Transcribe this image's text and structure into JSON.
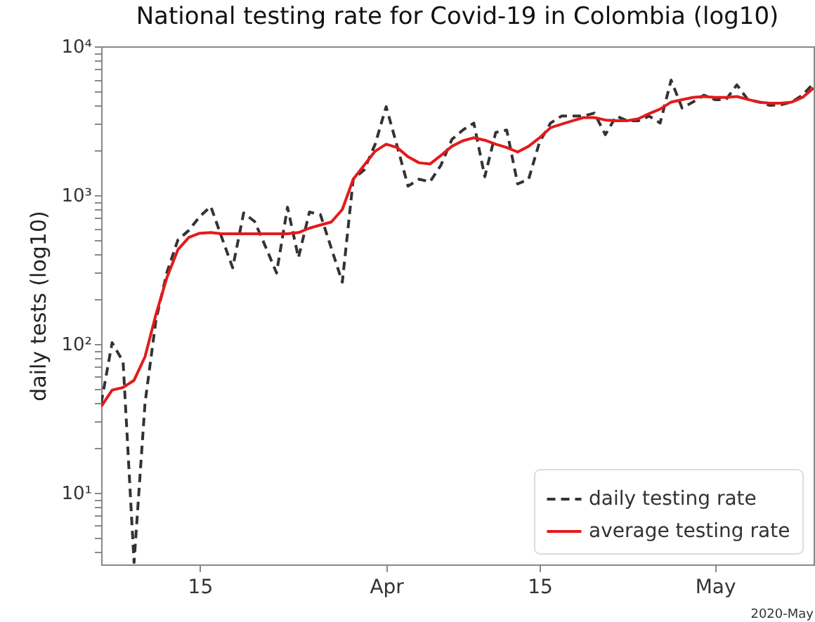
{
  "chart_data": {
    "type": "line",
    "title": "National testing rate for Covid-19 in Colombia (log10)",
    "ylabel": "daily tests (log10)",
    "annotations": [
      "2020-May"
    ],
    "x": [
      "2020-03-06",
      "2020-03-07",
      "2020-03-08",
      "2020-03-09",
      "2020-03-10",
      "2020-03-11",
      "2020-03-12",
      "2020-03-13",
      "2020-03-14",
      "2020-03-15",
      "2020-03-16",
      "2020-03-17",
      "2020-03-18",
      "2020-03-19",
      "2020-03-20",
      "2020-03-21",
      "2020-03-22",
      "2020-03-23",
      "2020-03-24",
      "2020-03-25",
      "2020-03-26",
      "2020-03-27",
      "2020-03-28",
      "2020-03-29",
      "2020-03-30",
      "2020-03-31",
      "2020-04-01",
      "2020-04-02",
      "2020-04-03",
      "2020-04-04",
      "2020-04-05",
      "2020-04-06",
      "2020-04-07",
      "2020-04-08",
      "2020-04-09",
      "2020-04-10",
      "2020-04-11",
      "2020-04-12",
      "2020-04-13",
      "2020-04-14",
      "2020-04-15",
      "2020-04-16",
      "2020-04-17",
      "2020-04-18",
      "2020-04-19",
      "2020-04-20",
      "2020-04-21",
      "2020-04-22",
      "2020-04-23",
      "2020-04-24",
      "2020-04-25",
      "2020-04-26",
      "2020-04-27",
      "2020-04-28",
      "2020-04-29",
      "2020-04-30",
      "2020-05-01",
      "2020-05-02",
      "2020-05-03",
      "2020-05-04",
      "2020-05-05",
      "2020-05-06",
      "2020-05-07",
      "2020-05-08",
      "2020-05-09",
      "2020-05-10"
    ],
    "series": [
      {
        "name": "daily testing rate",
        "color": "#333333",
        "line_style": "dashed",
        "values": [
          40,
          102,
          76,
          3.4,
          40,
          145,
          303,
          500,
          580,
          720,
          840,
          520,
          325,
          760,
          665,
          450,
          300,
          830,
          380,
          770,
          740,
          440,
          260,
          1280,
          1480,
          2200,
          3930,
          2140,
          1150,
          1280,
          1230,
          1590,
          2370,
          2740,
          3050,
          1330,
          2640,
          2740,
          1190,
          1280,
          2280,
          3050,
          3400,
          3400,
          3400,
          3560,
          2550,
          3400,
          3160,
          3160,
          3400,
          3050,
          5930,
          3850,
          4230,
          4700,
          4380,
          4380,
          5510,
          4380,
          4230,
          4010,
          4050,
          4230,
          4700,
          5650
        ]
      },
      {
        "name": "average testing rate",
        "color": "#e31a1c",
        "line_style": "solid",
        "values": [
          38,
          49,
          51,
          57,
          82,
          158,
          280,
          430,
          520,
          555,
          560,
          550,
          550,
          550,
          550,
          550,
          550,
          550,
          560,
          600,
          630,
          660,
          800,
          1280,
          1590,
          1975,
          2200,
          2090,
          1810,
          1650,
          1620,
          1850,
          2130,
          2320,
          2430,
          2340,
          2200,
          2090,
          1950,
          2130,
          2430,
          2840,
          3000,
          3160,
          3320,
          3320,
          3200,
          3160,
          3160,
          3260,
          3530,
          3790,
          4220,
          4380,
          4540,
          4600,
          4540,
          4540,
          4600,
          4400,
          4220,
          4150,
          4150,
          4220,
          4540,
          5250
        ]
      }
    ],
    "log": true,
    "xlim": [
      "2020-03-06",
      "2020-05-10"
    ],
    "xticks": [
      {
        "value": "2020-03-15",
        "label": "15"
      },
      {
        "value": "2020-04-01",
        "label": "Apr"
      },
      {
        "value": "2020-04-15",
        "label": "15"
      },
      {
        "value": "2020-05-01",
        "label": "May"
      }
    ],
    "ylim": [
      3.3,
      10000
    ],
    "yticks": [
      {
        "value": 4,
        "label": null
      },
      {
        "value": 5,
        "label": null
      },
      {
        "value": 6,
        "label": null
      },
      {
        "value": 7,
        "label": null
      },
      {
        "value": 8,
        "label": null
      },
      {
        "value": 9,
        "label": null
      },
      {
        "value": 10,
        "label": "10¹"
      },
      {
        "value": 20,
        "label": null
      },
      {
        "value": 30,
        "label": null
      },
      {
        "value": 40,
        "label": null
      },
      {
        "value": 50,
        "label": null
      },
      {
        "value": 60,
        "label": null
      },
      {
        "value": 70,
        "label": null
      },
      {
        "value": 80,
        "label": null
      },
      {
        "value": 90,
        "label": null
      },
      {
        "value": 100,
        "label": "10²"
      },
      {
        "value": 200,
        "label": null
      },
      {
        "value": 300,
        "label": null
      },
      {
        "value": 400,
        "label": null
      },
      {
        "value": 500,
        "label": null
      },
      {
        "value": 600,
        "label": null
      },
      {
        "value": 700,
        "label": null
      },
      {
        "value": 800,
        "label": null
      },
      {
        "value": 900,
        "label": null
      },
      {
        "value": 1000,
        "label": "10³"
      },
      {
        "value": 2000,
        "label": null
      },
      {
        "value": 3000,
        "label": null
      },
      {
        "value": 4000,
        "label": null
      },
      {
        "value": 5000,
        "label": null
      },
      {
        "value": 6000,
        "label": null
      },
      {
        "value": 7000,
        "label": null
      },
      {
        "value": 8000,
        "label": null
      },
      {
        "value": 9000,
        "label": null
      },
      {
        "value": 10000,
        "label": "10⁴"
      }
    ],
    "legend": "bottom right"
  }
}
